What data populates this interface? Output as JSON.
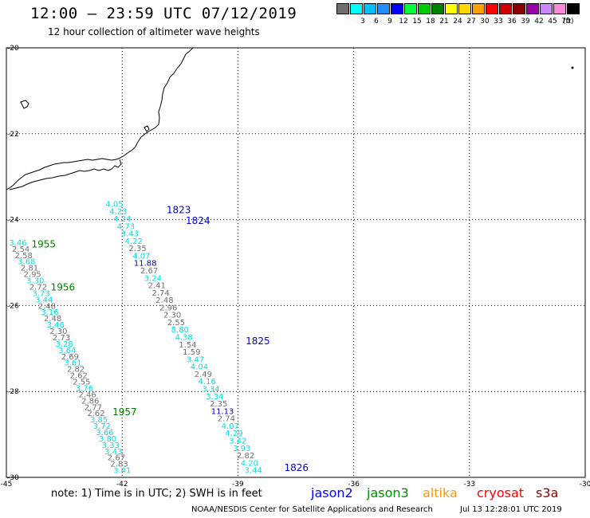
{
  "title": "12:00 – 23:59 UTC 07/12/2019",
  "subtitle": "12 hour collection of altimeter wave heights",
  "legend": {
    "unit": "(ft)",
    "bins": [
      {
        "label": "",
        "color": "#6f6f6f"
      },
      {
        "label": "3",
        "color": "#00ffff"
      },
      {
        "label": "6",
        "color": "#00bfff"
      },
      {
        "label": "9",
        "color": "#1f8fff"
      },
      {
        "label": "12",
        "color": "#0000ff"
      },
      {
        "label": "15",
        "color": "#00ff40"
      },
      {
        "label": "18",
        "color": "#00cc00"
      },
      {
        "label": "21",
        "color": "#008000"
      },
      {
        "label": "24",
        "color": "#ffff00"
      },
      {
        "label": "27",
        "color": "#ffd700"
      },
      {
        "label": "30",
        "color": "#ff9f00"
      },
      {
        "label": "33",
        "color": "#ff0000"
      },
      {
        "label": "36",
        "color": "#cc0000"
      },
      {
        "label": "39",
        "color": "#8b0000"
      },
      {
        "label": "42",
        "color": "#9900aa"
      },
      {
        "label": "45",
        "color": "#cc88ff"
      },
      {
        "label": "70",
        "color": "#ff88dd"
      },
      {
        "label": "",
        "color": "#000000"
      }
    ]
  },
  "map": {
    "lon_range": [
      -45,
      -30
    ],
    "lat_range": [
      -30,
      -20
    ],
    "lon_ticks": [
      -45,
      -42,
      -39,
      -36,
      -33,
      -30
    ],
    "lat_ticks": [
      -20,
      -22,
      -24,
      -26,
      -28,
      -30
    ],
    "gridlines": true
  },
  "colors": {
    "gray": "#6f6f6f",
    "cyan": "#00e0e0",
    "blue": "#0000cc",
    "green": "#008000",
    "jason2": "#0000ff",
    "jason3": "#009000",
    "altika": "#ff9900",
    "cryosat": "#ff0000",
    "s3a": "#990000"
  },
  "tracks": [
    {
      "name": "east",
      "start": [
        -42.2,
        -23.7
      ],
      "end": [
        -38.6,
        -29.9
      ],
      "points": [
        {
          "v": "4.05",
          "c": "cyan"
        },
        {
          "v": "4.23",
          "c": "cyan"
        },
        {
          "v": "4.24",
          "c": "cyan"
        },
        {
          "v": "4.73",
          "c": "cyan"
        },
        {
          "v": "3.43",
          "c": "cyan"
        },
        {
          "v": "4.22",
          "c": "cyan"
        },
        {
          "v": "2.35",
          "c": "gray"
        },
        {
          "v": "4.07",
          "c": "cyan"
        },
        {
          "v": "11.88",
          "c": "blue"
        },
        {
          "v": "2.67",
          "c": "gray"
        },
        {
          "v": "3.24",
          "c": "cyan"
        },
        {
          "v": "2.41",
          "c": "gray"
        },
        {
          "v": "2.74",
          "c": "gray"
        },
        {
          "v": "2.48",
          "c": "gray"
        },
        {
          "v": "2.96",
          "c": "gray"
        },
        {
          "v": "2.30",
          "c": "gray"
        },
        {
          "v": "2.55",
          "c": "gray"
        },
        {
          "v": "8.80",
          "c": "cyan"
        },
        {
          "v": "4.38",
          "c": "cyan"
        },
        {
          "v": "1.54",
          "c": "gray"
        },
        {
          "v": "1.59",
          "c": "gray"
        },
        {
          "v": "3.47",
          "c": "cyan"
        },
        {
          "v": "4.04",
          "c": "cyan"
        },
        {
          "v": "2.49",
          "c": "gray"
        },
        {
          "v": "4.16",
          "c": "cyan"
        },
        {
          "v": "3.34",
          "c": "cyan"
        },
        {
          "v": "3.34",
          "c": "cyan"
        },
        {
          "v": "2.35",
          "c": "gray"
        },
        {
          "v": "11.13",
          "c": "blue"
        },
        {
          "v": "2.74",
          "c": "gray"
        },
        {
          "v": "4.07",
          "c": "cyan"
        },
        {
          "v": "4.29",
          "c": "cyan"
        },
        {
          "v": "3.42",
          "c": "cyan"
        },
        {
          "v": "3.93",
          "c": "cyan"
        },
        {
          "v": "2.82",
          "c": "gray"
        },
        {
          "v": "4.20",
          "c": "cyan"
        },
        {
          "v": "3.44",
          "c": "cyan"
        }
      ]
    },
    {
      "name": "west",
      "start": [
        -44.7,
        -24.6
      ],
      "end": [
        -42.0,
        -29.9
      ],
      "points": [
        {
          "v": "3.46",
          "c": "cyan"
        },
        {
          "v": "2.54",
          "c": "gray"
        },
        {
          "v": "2.58",
          "c": "gray"
        },
        {
          "v": "3.68",
          "c": "cyan"
        },
        {
          "v": "2.81",
          "c": "gray"
        },
        {
          "v": "2.95",
          "c": "gray"
        },
        {
          "v": "3.30",
          "c": "cyan"
        },
        {
          "v": "2.72",
          "c": "gray"
        },
        {
          "v": "3.73",
          "c": "cyan"
        },
        {
          "v": "3.44",
          "c": "cyan"
        },
        {
          "v": "2.48",
          "c": "gray"
        },
        {
          "v": "3.16",
          "c": "cyan"
        },
        {
          "v": "2.48",
          "c": "gray"
        },
        {
          "v": "3.46",
          "c": "cyan"
        },
        {
          "v": "2.30",
          "c": "gray"
        },
        {
          "v": "2.73",
          "c": "gray"
        },
        {
          "v": "3.28",
          "c": "cyan"
        },
        {
          "v": "3.64",
          "c": "cyan"
        },
        {
          "v": "2.69",
          "c": "gray"
        },
        {
          "v": "3.61",
          "c": "cyan"
        },
        {
          "v": "2.82",
          "c": "gray"
        },
        {
          "v": "2.62",
          "c": "gray"
        },
        {
          "v": "2.55",
          "c": "gray"
        },
        {
          "v": "3.76",
          "c": "cyan"
        },
        {
          "v": "2.46",
          "c": "gray"
        },
        {
          "v": "2.86",
          "c": "gray"
        },
        {
          "v": "2.77",
          "c": "gray"
        },
        {
          "v": "2.62",
          "c": "gray"
        },
        {
          "v": "3.85",
          "c": "cyan"
        },
        {
          "v": "3.72",
          "c": "cyan"
        },
        {
          "v": "3.66",
          "c": "cyan"
        },
        {
          "v": "3.80",
          "c": "cyan"
        },
        {
          "v": "3.33",
          "c": "cyan"
        },
        {
          "v": "3.43",
          "c": "cyan"
        },
        {
          "v": "2.67",
          "c": "gray"
        },
        {
          "v": "2.83",
          "c": "gray"
        },
        {
          "v": "3.41",
          "c": "cyan"
        }
      ]
    }
  ],
  "time_labels": [
    {
      "text": "1823",
      "lon": -40.85,
      "lat": -23.85,
      "c": "blue"
    },
    {
      "text": "1824",
      "lon": -40.35,
      "lat": -24.1,
      "c": "blue"
    },
    {
      "text": "1825",
      "lon": -38.8,
      "lat": -26.9,
      "c": "blue"
    },
    {
      "text": "1826",
      "lon": -37.8,
      "lat": -29.85,
      "c": "blue"
    },
    {
      "text": "1955",
      "lon": -44.35,
      "lat": -24.65,
      "c": "green"
    },
    {
      "text": "1956",
      "lon": -43.85,
      "lat": -25.65,
      "c": "green"
    },
    {
      "text": "1957",
      "lon": -42.25,
      "lat": -28.55,
      "c": "green"
    }
  ],
  "note": "note:  1) Time is in UTC;  2) SWH is in feet",
  "satellites": [
    {
      "name": "jason2",
      "c": "jason2"
    },
    {
      "name": "jason3",
      "c": "jason3"
    },
    {
      "name": "altika",
      "c": "altika"
    },
    {
      "name": "cryosat",
      "c": "cryosat"
    },
    {
      "name": "s3a",
      "c": "s3a"
    }
  ],
  "credit": "NOAA/NESDIS Center for Satellite Applications and Research",
  "timestamp": "Jul 13 12:28:01 UTC 2019"
}
